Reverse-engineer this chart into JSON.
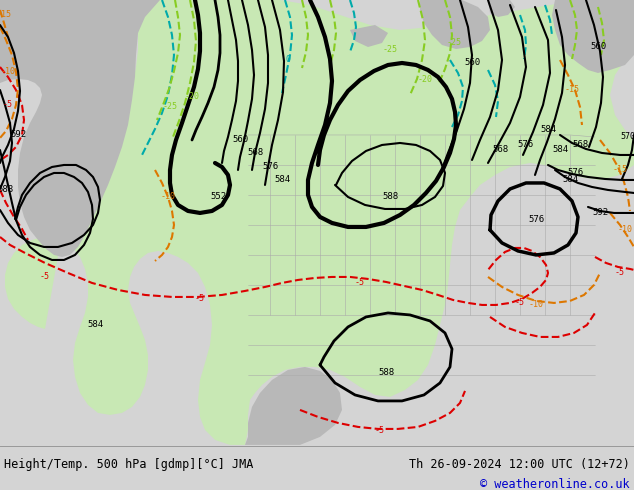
{
  "title_left": "Height/Temp. 500 hPa [gdmp][°C] JMA",
  "title_right": "Th 26-09-2024 12:00 UTC (12+72)",
  "copyright": "© weatheronline.co.uk",
  "bg_color": "#d4d4d4",
  "land_green_color": "#c8e8b4",
  "land_gray_color": "#b8b8b8",
  "ocean_color": "#d4d4d4",
  "bottom_bar_color": "#e8e8e8",
  "height_contour_color": "#000000",
  "temp_neg_color": "#dd0000",
  "temp_orange_color": "#dd7700",
  "temp_cyan_color": "#00aaaa",
  "temp_green_color": "#88cc22",
  "border_color": "#aaaaaa",
  "font_mono": "monospace"
}
